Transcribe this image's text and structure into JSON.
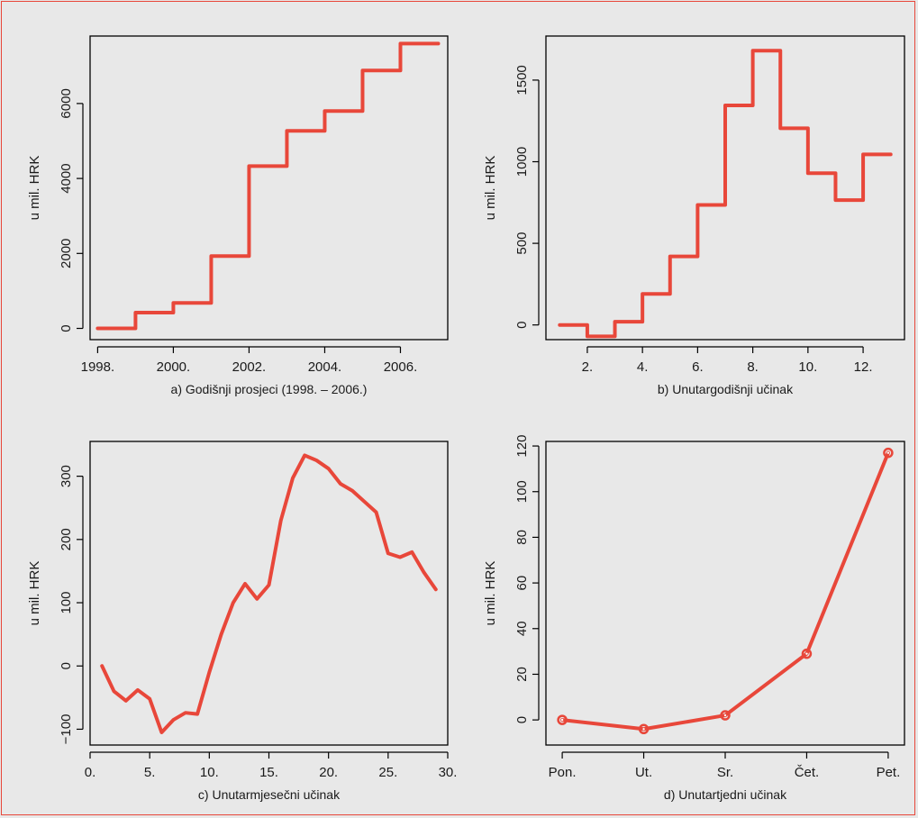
{
  "colors": {
    "series": "#e8473a",
    "frame": "#e8473a",
    "background": "#e8e8e8",
    "axis": "#000000"
  },
  "chart_data": [
    {
      "type": "line",
      "step": true,
      "caption": "a) Godišnji prosjeci (1998. – 2006.)",
      "ylabel": "u mil. HRK",
      "xlim": [
        1997.8,
        2007.25
      ],
      "ylim": [
        -300,
        7800
      ],
      "xticks": [
        1998,
        2000,
        2002,
        2004,
        2006
      ],
      "xtick_labels": [
        "1998.",
        "2000.",
        "2002.",
        "2004.",
        "2006."
      ],
      "yticks": [
        0,
        2000,
        4000,
        6000
      ],
      "ytick_labels": [
        "0",
        "2000",
        "4000",
        "6000"
      ],
      "x": [
        1998,
        1999,
        2000,
        2001,
        2002,
        2003,
        2004,
        2005,
        2006,
        2007
      ],
      "y": [
        0,
        420,
        680,
        1930,
        4330,
        5270,
        5800,
        6880,
        7600,
        7600
      ]
    },
    {
      "type": "line",
      "step": true,
      "caption": "b) Unutargodišnji učinak",
      "ylabel": "u mil. HRK",
      "xlim": [
        0.5,
        13.5
      ],
      "ylim": [
        -90,
        1770
      ],
      "xticks": [
        2,
        4,
        6,
        8,
        10,
        12
      ],
      "xtick_labels": [
        "2.",
        "4.",
        "6.",
        "8.",
        "10.",
        "12."
      ],
      "yticks": [
        0,
        500,
        1000,
        1500
      ],
      "ytick_labels": [
        "0",
        "500",
        "1000",
        "1500"
      ],
      "x": [
        1,
        2,
        3,
        4,
        5,
        6,
        7,
        8,
        9,
        10,
        11,
        12,
        13
      ],
      "y": [
        0,
        -70,
        20,
        190,
        420,
        735,
        1345,
        1680,
        1205,
        930,
        765,
        1045,
        1045
      ]
    },
    {
      "type": "line",
      "caption": "c) Unutarmjesečni učinak",
      "ylabel": "u mil. HRK",
      "xlim": [
        0,
        30
      ],
      "ylim": [
        -125,
        355
      ],
      "xticks": [
        0,
        5,
        10,
        15,
        20,
        25,
        30
      ],
      "xtick_labels": [
        "0.",
        "5.",
        "10.",
        "15.",
        "20.",
        "25.",
        "30."
      ],
      "yticks": [
        -100,
        0,
        100,
        200,
        300
      ],
      "ytick_labels": [
        "−100",
        "0",
        "100",
        "200",
        "300"
      ],
      "x": [
        1,
        2,
        3,
        4,
        5,
        6,
        7,
        8,
        9,
        10,
        11,
        12,
        13,
        14,
        15,
        16,
        17,
        18,
        19,
        20,
        21,
        22,
        23,
        24,
        25,
        26,
        27,
        28,
        29
      ],
      "y": [
        0,
        -40,
        -55,
        -38,
        -52,
        -105,
        -85,
        -74,
        -76,
        -10,
        50,
        100,
        130,
        106,
        128,
        230,
        297,
        333,
        325,
        312,
        288,
        277,
        260,
        243,
        178,
        172,
        180,
        148,
        121
      ]
    },
    {
      "type": "line",
      "markers": true,
      "caption": "d) Unutartjedni učinak",
      "ylabel": "u mil. HRK",
      "categories": [
        "Pon.",
        "Ut.",
        "Sr.",
        "Čet.",
        "Pet."
      ],
      "xlim": [
        0.8,
        5.2
      ],
      "ylim": [
        -11,
        122
      ],
      "xticks": [
        1,
        2,
        3,
        4,
        5
      ],
      "xtick_labels": [
        "Pon.",
        "Ut.",
        "Sr.",
        "Čet.",
        "Pet."
      ],
      "yticks": [
        0,
        20,
        40,
        60,
        80,
        100,
        120
      ],
      "ytick_labels": [
        "0",
        "20",
        "40",
        "60",
        "80",
        "100",
        "120"
      ],
      "x": [
        1,
        2,
        3,
        4,
        5
      ],
      "y": [
        0,
        -4,
        2,
        29,
        117
      ]
    }
  ]
}
